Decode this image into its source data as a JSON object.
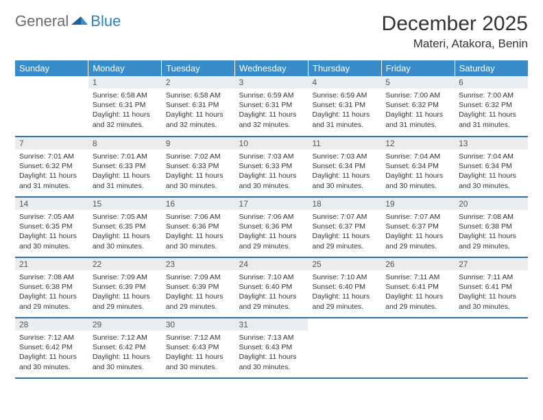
{
  "brand": {
    "part1": "General",
    "part2": "Blue"
  },
  "title": "December 2025",
  "location": "Materi, Atakora, Benin",
  "colors": {
    "header_bg": "#3a8bc9",
    "header_text": "#ffffff",
    "daynum_bg": "#e9edf0",
    "daynum_text": "#555555",
    "row_border": "#2f6fa3",
    "logo_gray": "#6a6a6a",
    "logo_blue": "#2f7fc2",
    "body_text": "#333333"
  },
  "weekdays": [
    "Sunday",
    "Monday",
    "Tuesday",
    "Wednesday",
    "Thursday",
    "Friday",
    "Saturday"
  ],
  "grid": {
    "start_weekday": 1,
    "days": [
      {
        "n": 1,
        "sr": "6:58 AM",
        "ss": "6:31 PM",
        "dh": 11,
        "dm": 32
      },
      {
        "n": 2,
        "sr": "6:58 AM",
        "ss": "6:31 PM",
        "dh": 11,
        "dm": 32
      },
      {
        "n": 3,
        "sr": "6:59 AM",
        "ss": "6:31 PM",
        "dh": 11,
        "dm": 32
      },
      {
        "n": 4,
        "sr": "6:59 AM",
        "ss": "6:31 PM",
        "dh": 11,
        "dm": 31
      },
      {
        "n": 5,
        "sr": "7:00 AM",
        "ss": "6:32 PM",
        "dh": 11,
        "dm": 31
      },
      {
        "n": 6,
        "sr": "7:00 AM",
        "ss": "6:32 PM",
        "dh": 11,
        "dm": 31
      },
      {
        "n": 7,
        "sr": "7:01 AM",
        "ss": "6:32 PM",
        "dh": 11,
        "dm": 31
      },
      {
        "n": 8,
        "sr": "7:01 AM",
        "ss": "6:33 PM",
        "dh": 11,
        "dm": 31
      },
      {
        "n": 9,
        "sr": "7:02 AM",
        "ss": "6:33 PM",
        "dh": 11,
        "dm": 30
      },
      {
        "n": 10,
        "sr": "7:03 AM",
        "ss": "6:33 PM",
        "dh": 11,
        "dm": 30
      },
      {
        "n": 11,
        "sr": "7:03 AM",
        "ss": "6:34 PM",
        "dh": 11,
        "dm": 30
      },
      {
        "n": 12,
        "sr": "7:04 AM",
        "ss": "6:34 PM",
        "dh": 11,
        "dm": 30
      },
      {
        "n": 13,
        "sr": "7:04 AM",
        "ss": "6:34 PM",
        "dh": 11,
        "dm": 30
      },
      {
        "n": 14,
        "sr": "7:05 AM",
        "ss": "6:35 PM",
        "dh": 11,
        "dm": 30
      },
      {
        "n": 15,
        "sr": "7:05 AM",
        "ss": "6:35 PM",
        "dh": 11,
        "dm": 30
      },
      {
        "n": 16,
        "sr": "7:06 AM",
        "ss": "6:36 PM",
        "dh": 11,
        "dm": 30
      },
      {
        "n": 17,
        "sr": "7:06 AM",
        "ss": "6:36 PM",
        "dh": 11,
        "dm": 29
      },
      {
        "n": 18,
        "sr": "7:07 AM",
        "ss": "6:37 PM",
        "dh": 11,
        "dm": 29
      },
      {
        "n": 19,
        "sr": "7:07 AM",
        "ss": "6:37 PM",
        "dh": 11,
        "dm": 29
      },
      {
        "n": 20,
        "sr": "7:08 AM",
        "ss": "6:38 PM",
        "dh": 11,
        "dm": 29
      },
      {
        "n": 21,
        "sr": "7:08 AM",
        "ss": "6:38 PM",
        "dh": 11,
        "dm": 29
      },
      {
        "n": 22,
        "sr": "7:09 AM",
        "ss": "6:39 PM",
        "dh": 11,
        "dm": 29
      },
      {
        "n": 23,
        "sr": "7:09 AM",
        "ss": "6:39 PM",
        "dh": 11,
        "dm": 29
      },
      {
        "n": 24,
        "sr": "7:10 AM",
        "ss": "6:40 PM",
        "dh": 11,
        "dm": 29
      },
      {
        "n": 25,
        "sr": "7:10 AM",
        "ss": "6:40 PM",
        "dh": 11,
        "dm": 29
      },
      {
        "n": 26,
        "sr": "7:11 AM",
        "ss": "6:41 PM",
        "dh": 11,
        "dm": 29
      },
      {
        "n": 27,
        "sr": "7:11 AM",
        "ss": "6:41 PM",
        "dh": 11,
        "dm": 30
      },
      {
        "n": 28,
        "sr": "7:12 AM",
        "ss": "6:42 PM",
        "dh": 11,
        "dm": 30
      },
      {
        "n": 29,
        "sr": "7:12 AM",
        "ss": "6:42 PM",
        "dh": 11,
        "dm": 30
      },
      {
        "n": 30,
        "sr": "7:12 AM",
        "ss": "6:43 PM",
        "dh": 11,
        "dm": 30
      },
      {
        "n": 31,
        "sr": "7:13 AM",
        "ss": "6:43 PM",
        "dh": 11,
        "dm": 30
      }
    ]
  },
  "labels": {
    "sunrise": "Sunrise:",
    "sunset": "Sunset:",
    "daylight_prefix": "Daylight:",
    "hours_word": "hours",
    "and_word": "and",
    "minutes_word": "minutes."
  }
}
